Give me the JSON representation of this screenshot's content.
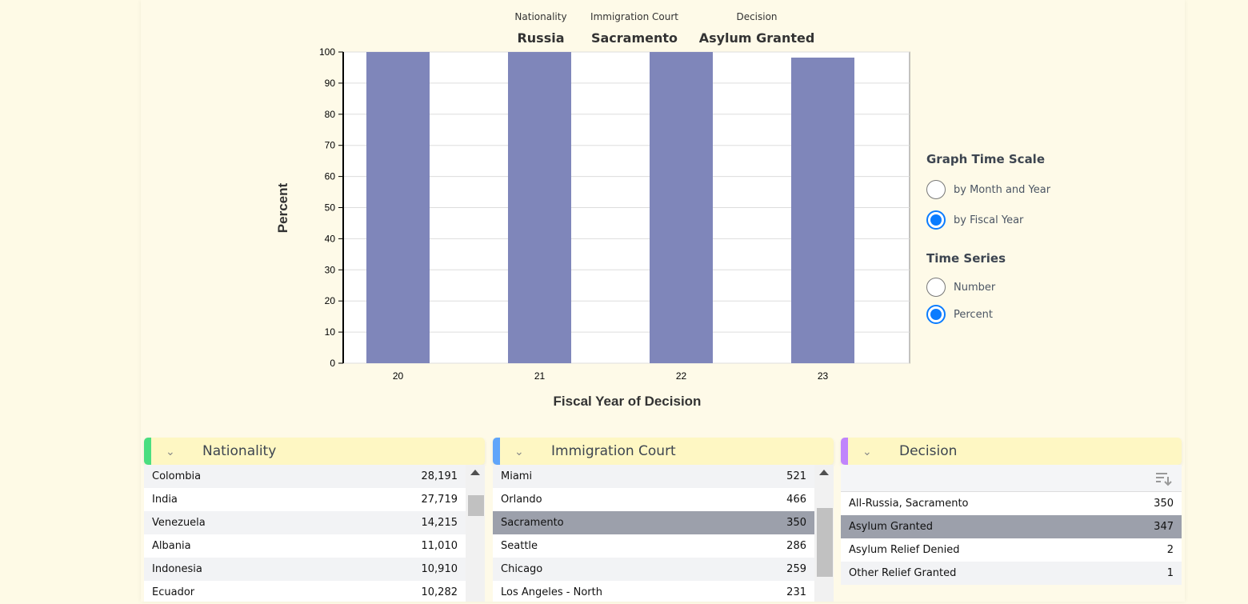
{
  "filters": [
    {
      "label": "Nationality",
      "value": "Russia"
    },
    {
      "label": "Immigration Court",
      "value": "Sacramento"
    },
    {
      "label": "Decision",
      "value": "Asylum Granted"
    }
  ],
  "chart_data": {
    "type": "bar",
    "categories": [
      "20",
      "21",
      "22",
      "23"
    ],
    "values": [
      100,
      100,
      100,
      98.2
    ],
    "xlabel": "Fiscal Year of Decision",
    "ylabel": "Percent",
    "ylim": [
      0,
      100
    ],
    "yticks": [
      0,
      10,
      20,
      30,
      40,
      50,
      60,
      70,
      80,
      90,
      100
    ],
    "grid": true,
    "bar_color": "#7f86ba"
  },
  "controls": {
    "time_scale": {
      "title": "Graph Time Scale",
      "options": [
        {
          "label": "by Month and Year",
          "selected": false
        },
        {
          "label": "by Fiscal Year",
          "selected": true
        }
      ]
    },
    "time_series": {
      "title": "Time Series",
      "options": [
        {
          "label": "Number",
          "selected": false
        },
        {
          "label": "Percent",
          "selected": true
        }
      ]
    }
  },
  "panels": [
    {
      "title": "Nationality",
      "accent": "#4ade80",
      "rows": [
        {
          "label": "Colombia",
          "count": "28,191"
        },
        {
          "label": "India",
          "count": "27,719"
        },
        {
          "label": "Venezuela",
          "count": "14,215"
        },
        {
          "label": "Albania",
          "count": "11,010"
        },
        {
          "label": "Indonesia",
          "count": "10,910"
        },
        {
          "label": "Ecuador",
          "count": "10,282"
        }
      ]
    },
    {
      "title": "Immigration Court",
      "accent": "#60a5fa",
      "rows": [
        {
          "label": "Miami",
          "count": "521"
        },
        {
          "label": "Orlando",
          "count": "466"
        },
        {
          "label": "Sacramento",
          "count": "350",
          "selected": true
        },
        {
          "label": "Seattle",
          "count": "286"
        },
        {
          "label": "Chicago",
          "count": "259"
        },
        {
          "label": "Los Angeles - North",
          "count": "231"
        }
      ]
    },
    {
      "title": "Decision",
      "accent": "#c084fc",
      "rows": [
        {
          "label": "All-Russia, Sacramento",
          "count": "350"
        },
        {
          "label": "Asylum Granted",
          "count": "347",
          "selected": true
        },
        {
          "label": "Asylum Relief Denied",
          "count": "2"
        },
        {
          "label": "Other Relief Granted",
          "count": "1"
        }
      ]
    }
  ],
  "icons": {
    "collapse": "chevron-down-icon",
    "sort": "sort-descending-icon",
    "scroll_up": "scroll-up-arrow-icon"
  }
}
